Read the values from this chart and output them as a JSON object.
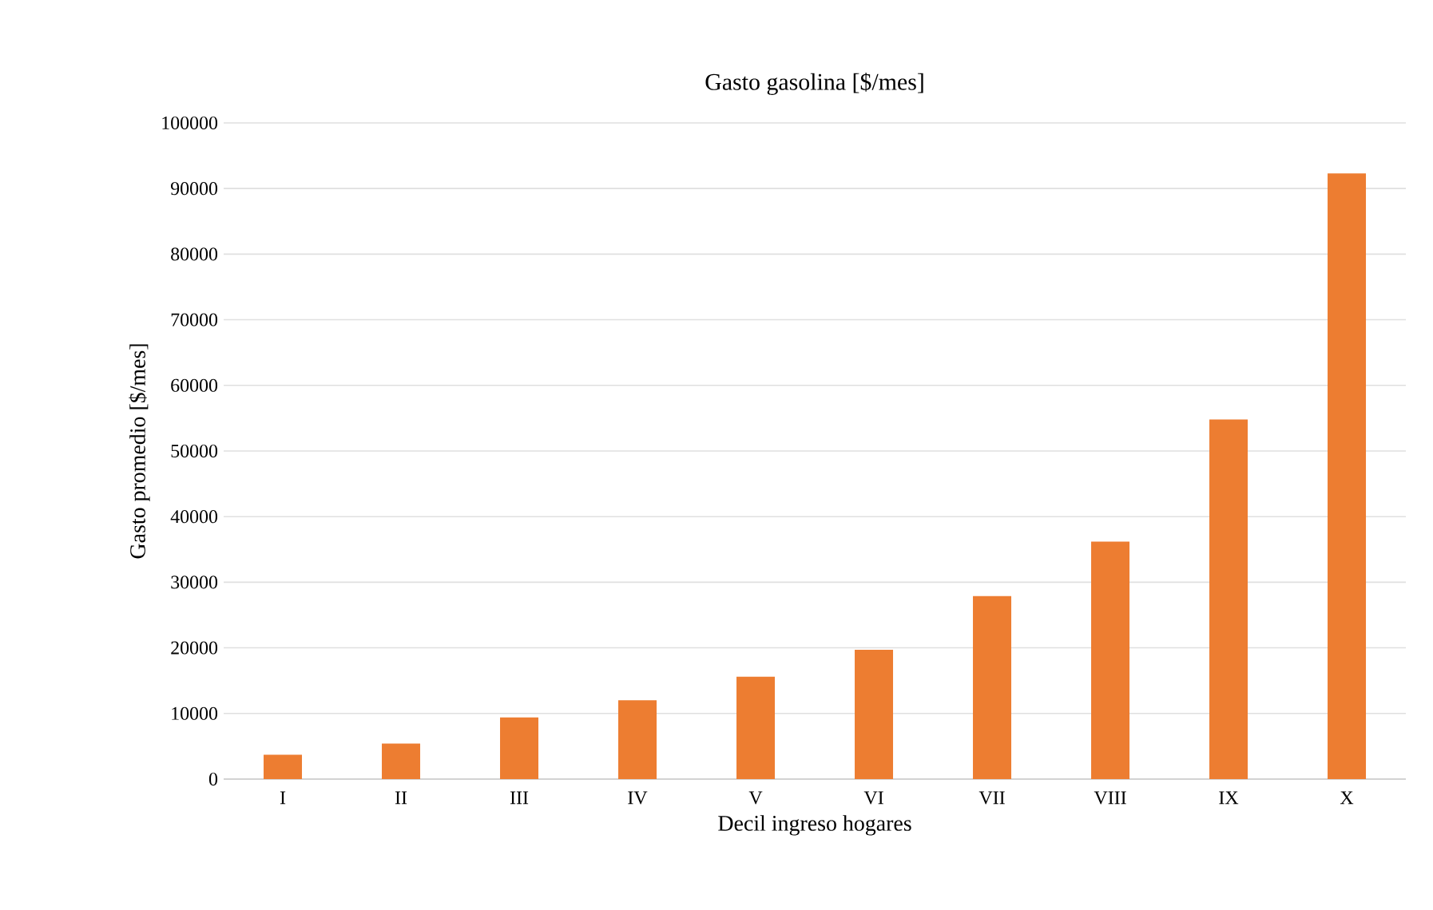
{
  "chart_data": {
    "type": "bar",
    "title": "Gasto gasolina [$/mes]",
    "xlabel": "Decil ingreso hogares",
    "ylabel": "Gasto promedio [$/mes]",
    "categories": [
      "I",
      "II",
      "III",
      "IV",
      "V",
      "VI",
      "VII",
      "VIII",
      "IX",
      "X"
    ],
    "values": [
      3700,
      5400,
      9400,
      12000,
      15600,
      19700,
      27900,
      36200,
      54800,
      92300
    ],
    "color": "#ed7d31",
    "ylim": [
      0,
      100000
    ],
    "yticks": [
      0,
      10000,
      20000,
      30000,
      40000,
      50000,
      60000,
      70000,
      80000,
      90000,
      100000
    ],
    "grid": "y"
  }
}
